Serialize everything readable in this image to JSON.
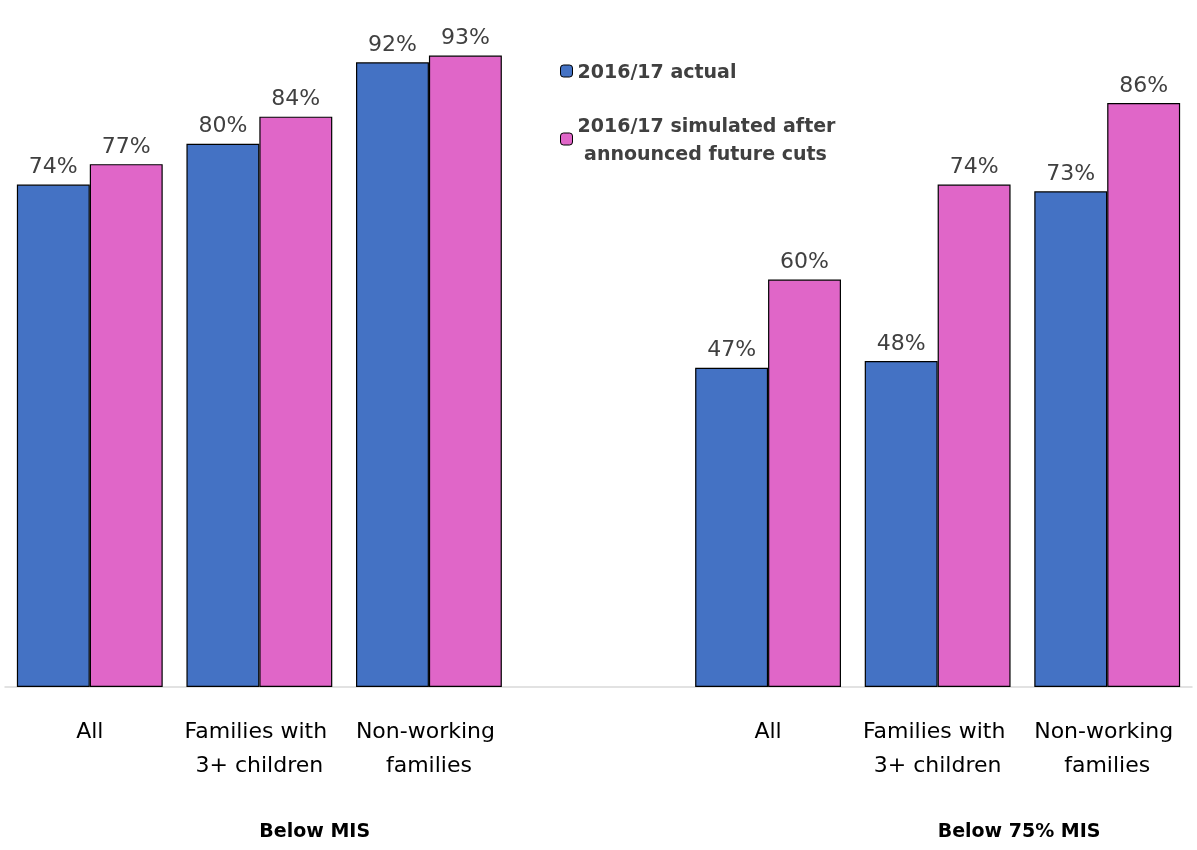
{
  "chart_data": {
    "type": "bar",
    "categories": [
      "All",
      "Families with 3+ children",
      "Non-working families",
      null,
      "All",
      "Families with 3+ children",
      "Non-working families"
    ],
    "series": [
      {
        "name": "2016/17 actual",
        "color": "#4472c4",
        "values": [
          74,
          80,
          92,
          null,
          47,
          48,
          73
        ],
        "value_labels": [
          "74%",
          "80%",
          "92%",
          null,
          "47%",
          "48%",
          "73%"
        ]
      },
      {
        "name": "2016/17 simulated after announced future cuts",
        "color": "#e066c8",
        "values": [
          77,
          84,
          93,
          null,
          60,
          74,
          86
        ],
        "value_labels": [
          "77%",
          "84%",
          "93%",
          null,
          "60%",
          "74%",
          "86%"
        ]
      }
    ],
    "annotations": [
      "Below MIS",
      "Below 75% MIS"
    ],
    "legend": "top right"
  }
}
